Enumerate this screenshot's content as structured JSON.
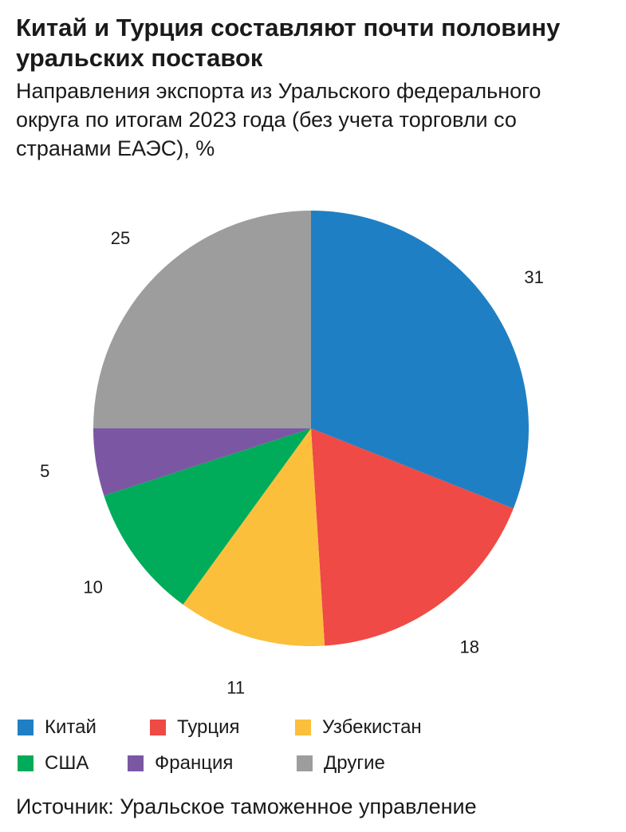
{
  "header": {
    "title": "Китай и Турция составляют почти половину уральских поставок",
    "subtitle": "Направления экспорта из Уральского федерального округа по итогам 2023 года (без учета торговли со странами ЕАЭС), %"
  },
  "chart_data": {
    "type": "pie",
    "title": "Китай и Турция составляют почти половину уральских поставок",
    "unit": "%",
    "categories": [
      "Китай",
      "Турция",
      "Узбекистан",
      "США",
      "Франция",
      "Другие"
    ],
    "values": [
      31,
      18,
      11,
      10,
      5,
      25
    ],
    "labels": [
      "31",
      "18",
      "11",
      "10",
      "5",
      "25"
    ],
    "colors": [
      "#1f7fc4",
      "#ef4a45",
      "#fbbf3c",
      "#00ab5a",
      "#7b57a3",
      "#9d9d9d"
    ],
    "start": "12 o'clock, clockwise",
    "legend_position": "bottom"
  },
  "legend": [
    {
      "label": "Китай",
      "color": "#1f7fc4"
    },
    {
      "label": "Турция",
      "color": "#ef4a45"
    },
    {
      "label": "Узбекистан",
      "color": "#fbbf3c"
    },
    {
      "label": "США",
      "color": "#00ab5a"
    },
    {
      "label": "Франция",
      "color": "#7b57a3"
    },
    {
      "label": "Другие",
      "color": "#9d9d9d"
    }
  ],
  "footer": {
    "source": "Источник: Уральское таможенное управление"
  }
}
